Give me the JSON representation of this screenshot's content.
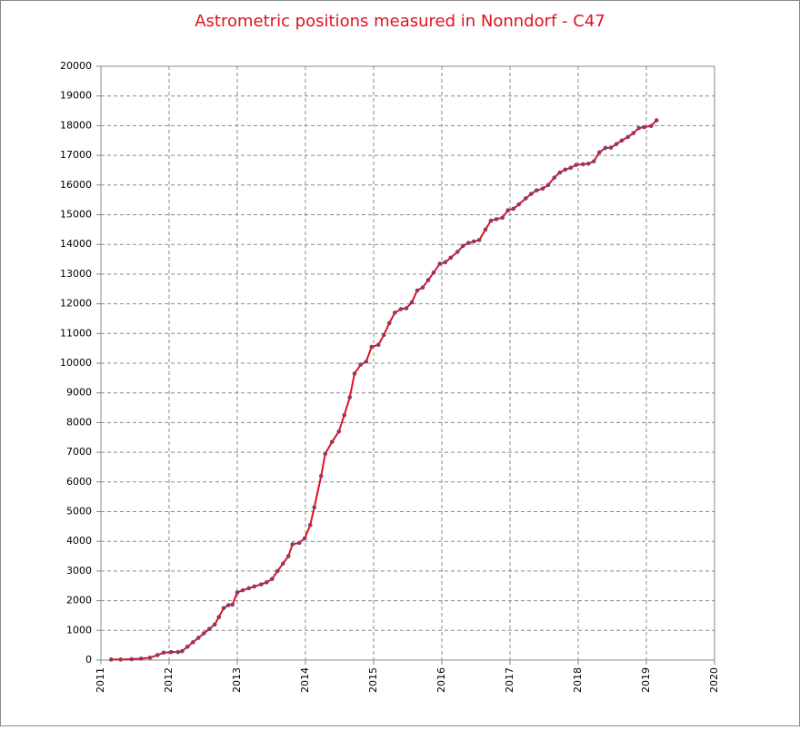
{
  "chart_data": {
    "type": "line",
    "title": "Astrometric positions measured in Nonndorf - C47",
    "x": [
      2011.15,
      2011.29,
      2011.45,
      2011.59,
      2011.72,
      2011.83,
      2011.92,
      2012.03,
      2012.13,
      2012.19,
      2012.27,
      2012.35,
      2012.43,
      2012.51,
      2012.59,
      2012.67,
      2012.73,
      2012.8,
      2012.87,
      2012.93,
      2013.0,
      2013.08,
      2013.17,
      2013.25,
      2013.35,
      2013.43,
      2013.51,
      2013.59,
      2013.67,
      2013.75,
      2013.81,
      2013.91,
      2013.99,
      2014.07,
      2014.13,
      2014.23,
      2014.29,
      2014.39,
      2014.49,
      2014.57,
      2014.65,
      2014.72,
      2014.81,
      2014.89,
      2014.97,
      2015.07,
      2015.15,
      2015.23,
      2015.31,
      2015.4,
      2015.48,
      2015.56,
      2015.64,
      2015.72,
      2015.8,
      2015.88,
      2015.97,
      2016.05,
      2016.13,
      2016.23,
      2016.31,
      2016.39,
      2016.47,
      2016.55,
      2016.64,
      2016.72,
      2016.8,
      2016.89,
      2016.97,
      2017.05,
      2017.13,
      2017.23,
      2017.31,
      2017.39,
      2017.48,
      2017.56,
      2017.65,
      2017.73,
      2017.81,
      2017.89,
      2017.97,
      2018.07,
      2018.15,
      2018.23,
      2018.31,
      2018.4,
      2018.48,
      2018.56,
      2018.64,
      2018.73,
      2018.81,
      2018.89,
      2018.97,
      2019.07,
      2019.15
    ],
    "values": [
      20,
      20,
      30,
      50,
      80,
      170,
      250,
      270,
      270,
      300,
      450,
      600,
      750,
      900,
      1050,
      1200,
      1450,
      1750,
      1850,
      1870,
      2280,
      2350,
      2420,
      2480,
      2550,
      2620,
      2730,
      3000,
      3250,
      3500,
      3900,
      3950,
      4100,
      4550,
      5150,
      6200,
      6950,
      7350,
      7700,
      8250,
      8850,
      9650,
      9950,
      10050,
      10550,
      10620,
      10950,
      11350,
      11700,
      11820,
      11850,
      12050,
      12450,
      12550,
      12800,
      13050,
      13350,
      13400,
      13550,
      13750,
      13950,
      14050,
      14100,
      14150,
      14500,
      14800,
      14850,
      14900,
      15150,
      15200,
      15350,
      15550,
      15700,
      15820,
      15880,
      16000,
      16250,
      16420,
      16520,
      16580,
      16680,
      16700,
      16720,
      16800,
      17100,
      17250,
      17260,
      17380,
      17500,
      17620,
      17750,
      17920,
      17950,
      17990,
      18180
    ],
    "color": "#e3101e",
    "marker_color": "#8c3a66",
    "xlim": [
      2011,
      2020
    ],
    "xticks": [
      2011,
      2012,
      2013,
      2014,
      2015,
      2016,
      2017,
      2018,
      2019,
      2020
    ],
    "ylim": [
      0,
      20000
    ],
    "yticks": [
      0,
      1000,
      2000,
      3000,
      4000,
      5000,
      6000,
      7000,
      8000,
      9000,
      10000,
      11000,
      12000,
      13000,
      14000,
      15000,
      16000,
      17000,
      18000,
      19000,
      20000
    ],
    "grid": true
  }
}
